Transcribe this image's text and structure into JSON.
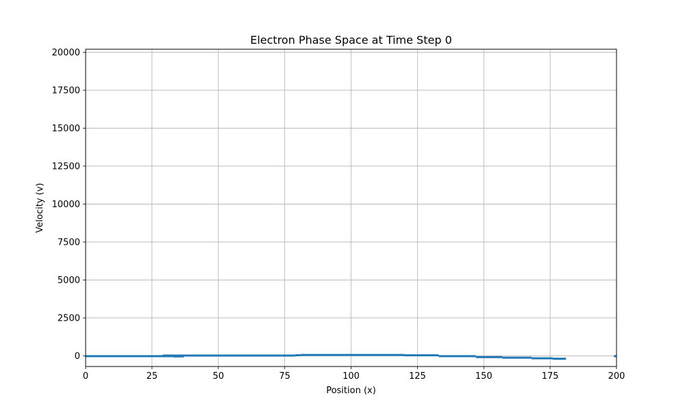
{
  "chart_data": {
    "type": "scatter",
    "title": "Electron Phase Space at Time Step 0",
    "xlabel": "Position (x)",
    "ylabel": "Velocity (v)",
    "xlim": [
      0,
      200
    ],
    "ylim": [
      -700,
      20200
    ],
    "xticks": [
      0,
      25,
      50,
      75,
      100,
      125,
      150,
      175,
      200
    ],
    "yticks": [
      0,
      2500,
      5000,
      7500,
      10000,
      12500,
      15000,
      17500,
      20000
    ],
    "grid": true,
    "series": [
      {
        "color": "#1f77b4",
        "segments": [
          {
            "x": [
              0,
              33
            ],
            "v": -20
          },
          {
            "x": [
              33,
              37
            ],
            "v": -35
          },
          {
            "x": [
              29,
              79
            ],
            "v": 20
          },
          {
            "x": [
              79,
              81
            ],
            "v": 40
          },
          {
            "x": [
              81,
              120
            ],
            "v": 60
          },
          {
            "x": [
              120,
              133
            ],
            "v": 40
          },
          {
            "x": [
              133,
              147
            ],
            "v": -20
          },
          {
            "x": [
              147,
              157
            ],
            "v": -80
          },
          {
            "x": [
              157,
              168
            ],
            "v": -120
          },
          {
            "x": [
              168,
              176
            ],
            "v": -160
          },
          {
            "x": [
              176,
              181
            ],
            "v": -190
          },
          {
            "x": [
              199,
              200
            ],
            "v": -20
          }
        ]
      }
    ]
  }
}
